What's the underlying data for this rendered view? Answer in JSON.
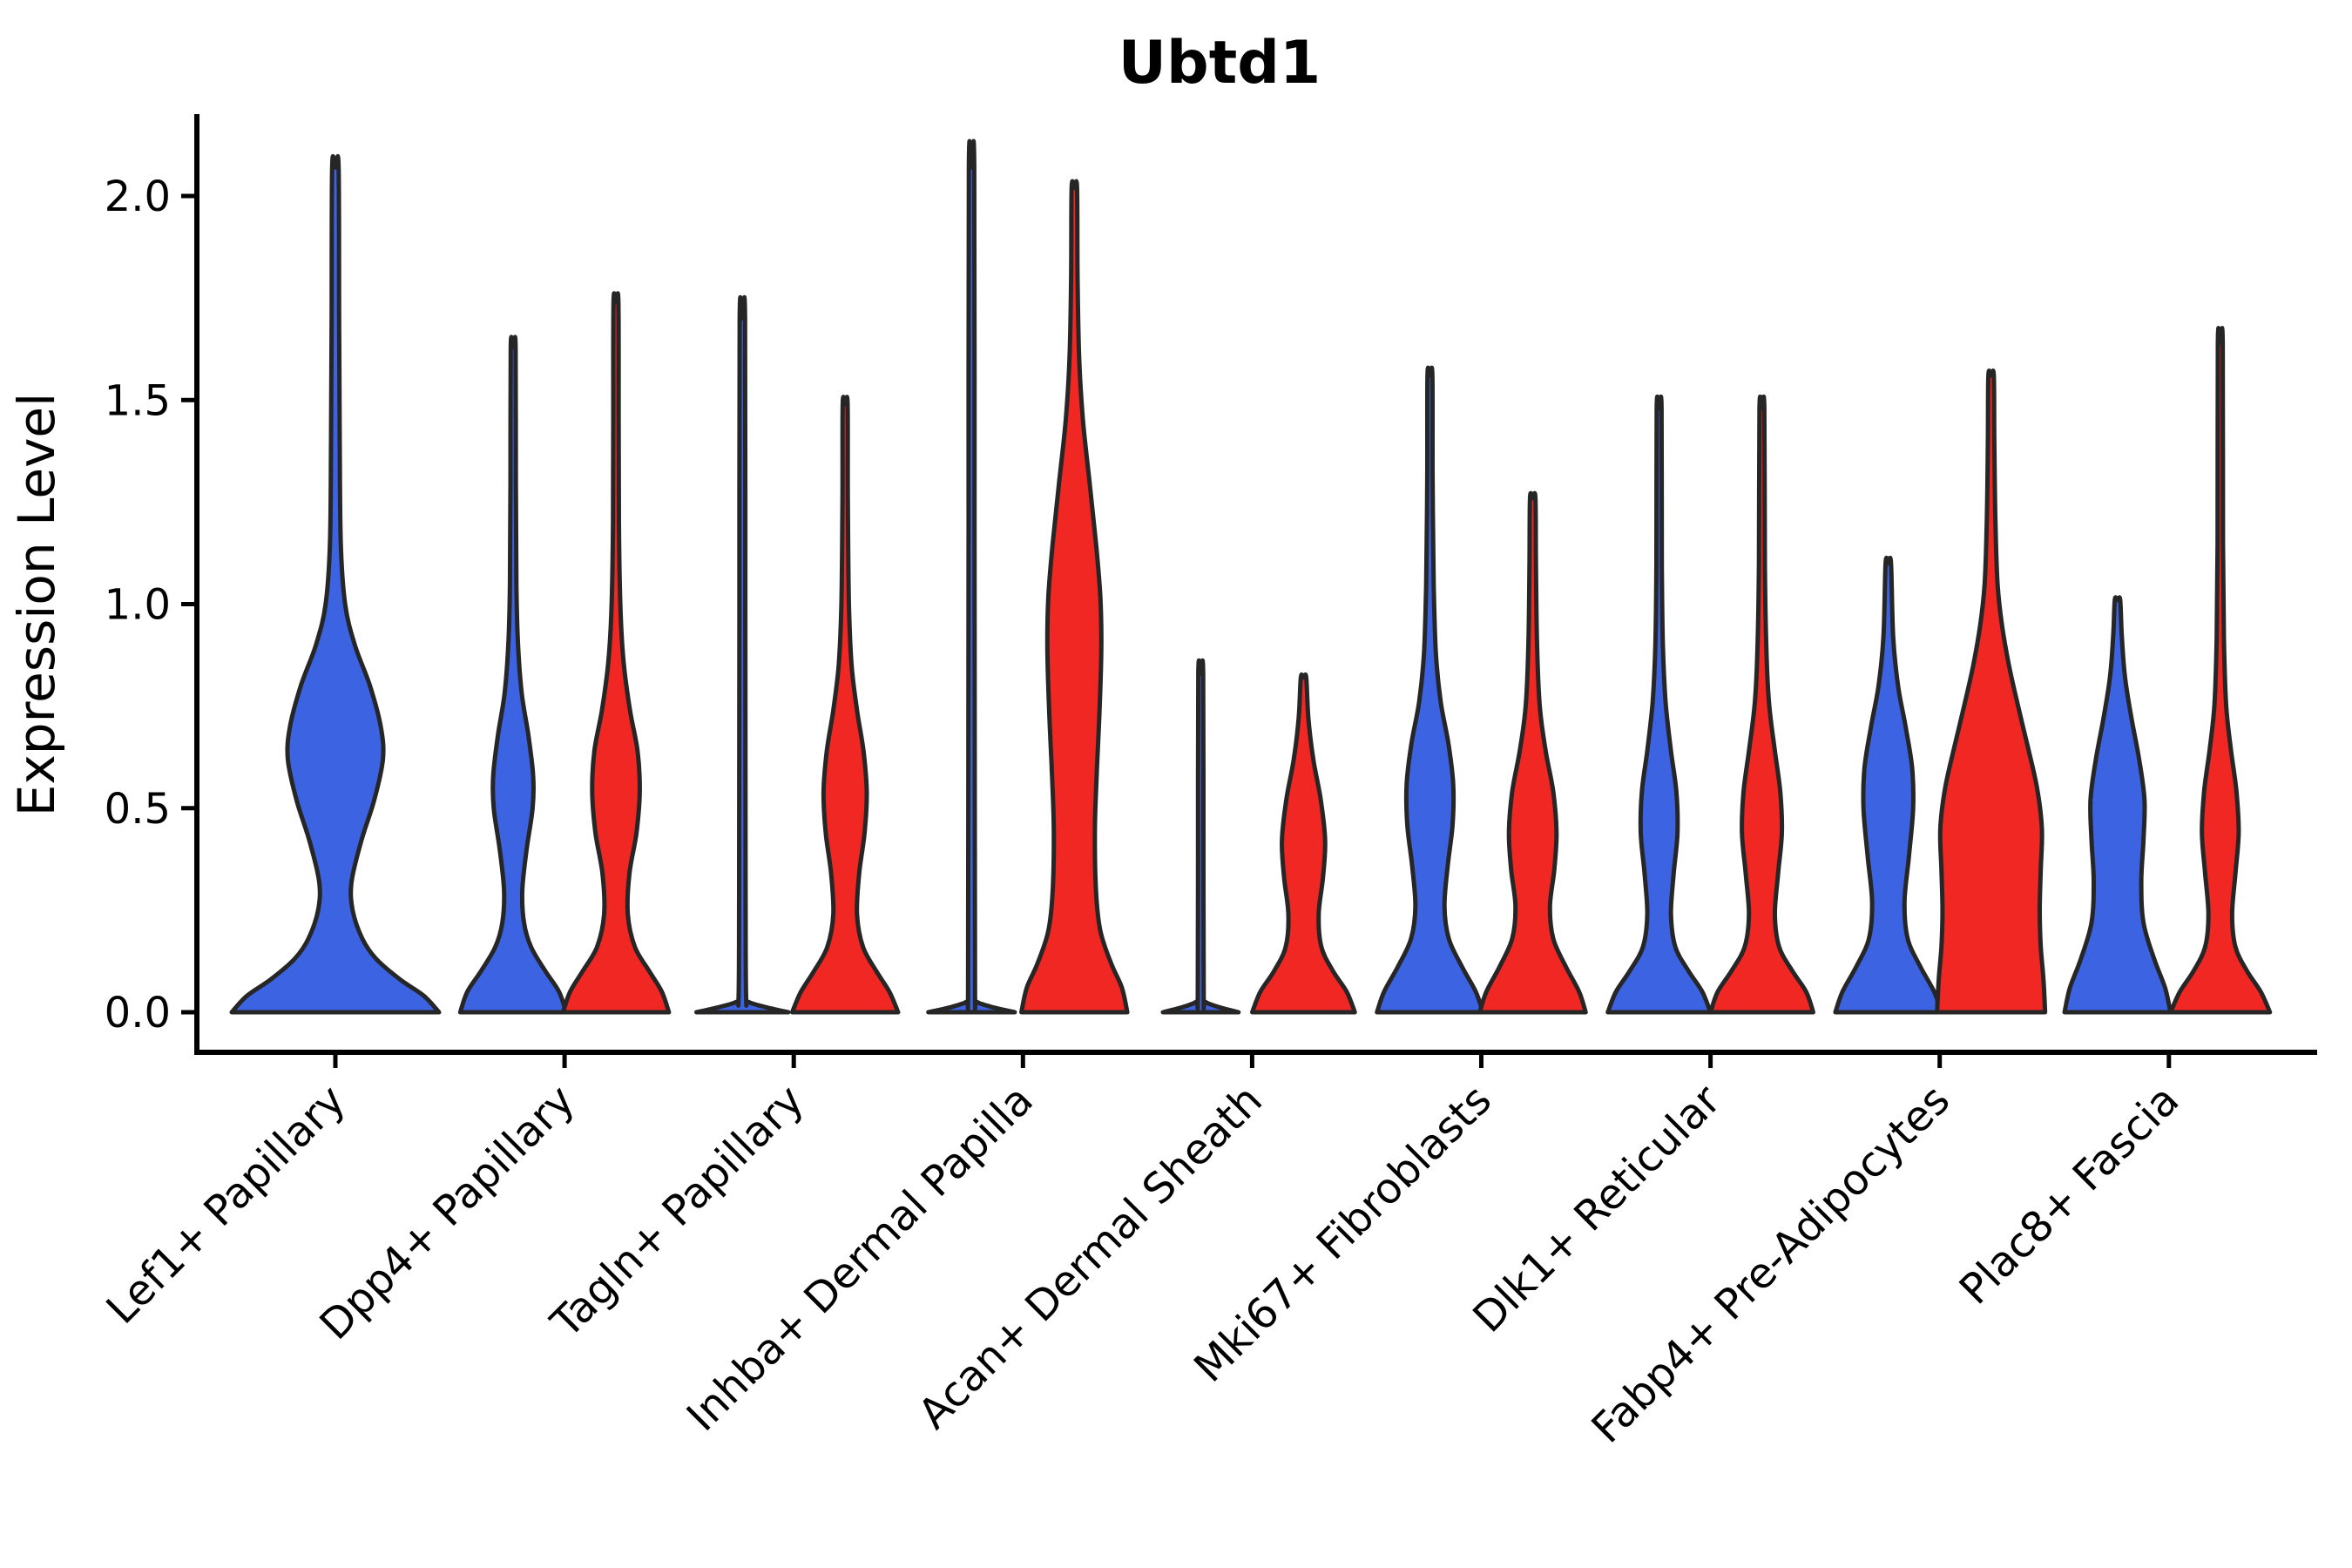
{
  "title": "Ubtd1",
  "axes": {
    "ylabel": "Expression Level",
    "ytick_labels": [
      "0.0",
      "0.5",
      "1.0",
      "1.5",
      "2.0"
    ],
    "ytick_values": [
      0,
      0.5,
      1.0,
      1.5,
      2.0
    ]
  },
  "colors": {
    "blue": "#3C63E2",
    "red": "#F12723",
    "outline": "#262626",
    "axis": "#000000"
  },
  "chart_data": {
    "type": "violin",
    "title": "Ubtd1",
    "ylabel": "Expression Level",
    "ylim": [
      -0.06,
      2.2
    ],
    "grid": false,
    "legend": "none",
    "categories": [
      "Lef1+ Papillary",
      "Dpp4+ Papillary",
      "Tagln+ Papillary",
      "Inhba+ Dermal Papilla",
      "Acan+ Dermal Sheath",
      "Mki67+ Fibroblasts",
      "Dlk1+ Reticular",
      "Fabp4+ Pre-Adipocytes",
      "Plac8+ Fascia"
    ],
    "series": [
      {
        "name": "blue",
        "color_key": "blue"
      },
      {
        "name": "red",
        "color_key": "red"
      }
    ],
    "violins": [
      {
        "cat": 0,
        "color": "blue",
        "offset": 0,
        "width": 2,
        "max": 2.07,
        "profile": [
          [
            0,
            0.96
          ],
          [
            0.04,
            0.82
          ],
          [
            0.08,
            0.6
          ],
          [
            0.13,
            0.38
          ],
          [
            0.18,
            0.25
          ],
          [
            0.25,
            0.16
          ],
          [
            0.32,
            0.15
          ],
          [
            0.42,
            0.24
          ],
          [
            0.52,
            0.36
          ],
          [
            0.62,
            0.44
          ],
          [
            0.7,
            0.42
          ],
          [
            0.8,
            0.32
          ],
          [
            0.9,
            0.18
          ],
          [
            1.0,
            0.09
          ],
          [
            1.15,
            0.05
          ],
          [
            1.4,
            0.04
          ],
          [
            1.7,
            0.035
          ],
          [
            2.07,
            0.03
          ]
        ]
      },
      {
        "cat": 1,
        "color": "blue",
        "offset": -1,
        "width": 1,
        "max": 1.63,
        "profile": [
          [
            0,
            0.98
          ],
          [
            0.05,
            0.85
          ],
          [
            0.1,
            0.6
          ],
          [
            0.16,
            0.33
          ],
          [
            0.22,
            0.2
          ],
          [
            0.3,
            0.17
          ],
          [
            0.4,
            0.25
          ],
          [
            0.5,
            0.36
          ],
          [
            0.58,
            0.37
          ],
          [
            0.68,
            0.28
          ],
          [
            0.78,
            0.16
          ],
          [
            0.9,
            0.09
          ],
          [
            1.05,
            0.06
          ],
          [
            1.3,
            0.05
          ],
          [
            1.63,
            0.045
          ]
        ]
      },
      {
        "cat": 1,
        "color": "red",
        "offset": 1,
        "width": 1,
        "max": 1.74,
        "profile": [
          [
            0,
            0.98
          ],
          [
            0.05,
            0.85
          ],
          [
            0.1,
            0.62
          ],
          [
            0.16,
            0.35
          ],
          [
            0.24,
            0.22
          ],
          [
            0.34,
            0.25
          ],
          [
            0.44,
            0.38
          ],
          [
            0.54,
            0.44
          ],
          [
            0.64,
            0.4
          ],
          [
            0.74,
            0.26
          ],
          [
            0.86,
            0.14
          ],
          [
            1.0,
            0.08
          ],
          [
            1.2,
            0.055
          ],
          [
            1.45,
            0.05
          ],
          [
            1.74,
            0.045
          ]
        ]
      },
      {
        "cat": 2,
        "color": "blue",
        "offset": -1,
        "width": 1,
        "max": 1.7,
        "profile": [
          [
            0,
            0.85
          ],
          [
            0.012,
            0.45
          ],
          [
            0.025,
            0.12
          ],
          [
            0.04,
            0.07
          ],
          [
            0.3,
            0.06
          ],
          [
            1.0,
            0.055
          ],
          [
            1.7,
            0.05
          ]
        ]
      },
      {
        "cat": 2,
        "color": "red",
        "offset": 1,
        "width": 1,
        "max": 1.49,
        "profile": [
          [
            0,
            0.98
          ],
          [
            0.05,
            0.82
          ],
          [
            0.1,
            0.58
          ],
          [
            0.16,
            0.33
          ],
          [
            0.24,
            0.22
          ],
          [
            0.34,
            0.26
          ],
          [
            0.44,
            0.36
          ],
          [
            0.54,
            0.4
          ],
          [
            0.64,
            0.34
          ],
          [
            0.74,
            0.22
          ],
          [
            0.85,
            0.12
          ],
          [
            1.0,
            0.07
          ],
          [
            1.25,
            0.05
          ],
          [
            1.49,
            0.045
          ]
        ]
      },
      {
        "cat": 3,
        "color": "blue",
        "offset": -1,
        "width": 1,
        "max": 2.07,
        "profile": [
          [
            0,
            0.8
          ],
          [
            0.012,
            0.4
          ],
          [
            0.025,
            0.1
          ],
          [
            0.04,
            0.065
          ],
          [
            0.5,
            0.06
          ],
          [
            1.2,
            0.055
          ],
          [
            2.07,
            0.05
          ]
        ]
      },
      {
        "cat": 3,
        "color": "red",
        "offset": 1,
        "width": 1,
        "max": 2.02,
        "profile": [
          [
            0,
            0.98
          ],
          [
            0.06,
            0.88
          ],
          [
            0.12,
            0.68
          ],
          [
            0.2,
            0.48
          ],
          [
            0.3,
            0.4
          ],
          [
            0.45,
            0.38
          ],
          [
            0.6,
            0.42
          ],
          [
            0.75,
            0.47
          ],
          [
            0.9,
            0.5
          ],
          [
            1.02,
            0.48
          ],
          [
            1.15,
            0.4
          ],
          [
            1.3,
            0.28
          ],
          [
            1.45,
            0.16
          ],
          [
            1.6,
            0.09
          ],
          [
            1.8,
            0.06
          ],
          [
            2.02,
            0.05
          ]
        ]
      },
      {
        "cat": 4,
        "color": "blue",
        "offset": -1,
        "width": 1,
        "max": 0.83,
        "profile": [
          [
            0,
            0.7
          ],
          [
            0.012,
            0.35
          ],
          [
            0.025,
            0.09
          ],
          [
            0.04,
            0.055
          ],
          [
            0.4,
            0.05
          ],
          [
            0.83,
            0.045
          ]
        ]
      },
      {
        "cat": 4,
        "color": "red",
        "offset": 1,
        "width": 1,
        "max": 0.82,
        "profile": [
          [
            0,
            0.95
          ],
          [
            0.05,
            0.8
          ],
          [
            0.1,
            0.55
          ],
          [
            0.16,
            0.33
          ],
          [
            0.24,
            0.28
          ],
          [
            0.33,
            0.36
          ],
          [
            0.42,
            0.4
          ],
          [
            0.52,
            0.32
          ],
          [
            0.62,
            0.18
          ],
          [
            0.72,
            0.09
          ],
          [
            0.82,
            0.05
          ]
        ]
      },
      {
        "cat": 5,
        "color": "blue",
        "offset": -1,
        "width": 1,
        "max": 1.56,
        "profile": [
          [
            0,
            0.98
          ],
          [
            0.05,
            0.85
          ],
          [
            0.11,
            0.6
          ],
          [
            0.18,
            0.35
          ],
          [
            0.26,
            0.27
          ],
          [
            0.36,
            0.33
          ],
          [
            0.46,
            0.42
          ],
          [
            0.56,
            0.43
          ],
          [
            0.66,
            0.34
          ],
          [
            0.76,
            0.2
          ],
          [
            0.88,
            0.11
          ],
          [
            1.05,
            0.07
          ],
          [
            1.3,
            0.05
          ],
          [
            1.56,
            0.045
          ]
        ]
      },
      {
        "cat": 5,
        "color": "red",
        "offset": 1,
        "width": 1,
        "max": 1.26,
        "profile": [
          [
            0,
            0.98
          ],
          [
            0.05,
            0.86
          ],
          [
            0.11,
            0.62
          ],
          [
            0.18,
            0.38
          ],
          [
            0.26,
            0.32
          ],
          [
            0.35,
            0.4
          ],
          [
            0.44,
            0.44
          ],
          [
            0.54,
            0.38
          ],
          [
            0.64,
            0.24
          ],
          [
            0.75,
            0.13
          ],
          [
            0.9,
            0.08
          ],
          [
            1.1,
            0.06
          ],
          [
            1.26,
            0.05
          ]
        ]
      },
      {
        "cat": 6,
        "color": "blue",
        "offset": -1,
        "width": 1,
        "max": 1.48,
        "profile": [
          [
            0,
            0.95
          ],
          [
            0.05,
            0.8
          ],
          [
            0.1,
            0.55
          ],
          [
            0.16,
            0.3
          ],
          [
            0.24,
            0.22
          ],
          [
            0.34,
            0.27
          ],
          [
            0.44,
            0.34
          ],
          [
            0.54,
            0.32
          ],
          [
            0.64,
            0.22
          ],
          [
            0.76,
            0.12
          ],
          [
            0.9,
            0.07
          ],
          [
            1.1,
            0.05
          ],
          [
            1.48,
            0.045
          ]
        ]
      },
      {
        "cat": 6,
        "color": "red",
        "offset": 1,
        "width": 1,
        "max": 1.48,
        "profile": [
          [
            0,
            0.95
          ],
          [
            0.05,
            0.82
          ],
          [
            0.1,
            0.57
          ],
          [
            0.16,
            0.32
          ],
          [
            0.24,
            0.24
          ],
          [
            0.34,
            0.3
          ],
          [
            0.44,
            0.37
          ],
          [
            0.54,
            0.34
          ],
          [
            0.64,
            0.24
          ],
          [
            0.76,
            0.13
          ],
          [
            0.9,
            0.08
          ],
          [
            1.1,
            0.055
          ],
          [
            1.48,
            0.045
          ]
        ]
      },
      {
        "cat": 7,
        "color": "blue",
        "offset": -1,
        "width": 1,
        "max": 1.1,
        "profile": [
          [
            0,
            0.98
          ],
          [
            0.05,
            0.85
          ],
          [
            0.11,
            0.6
          ],
          [
            0.18,
            0.36
          ],
          [
            0.27,
            0.3
          ],
          [
            0.38,
            0.38
          ],
          [
            0.5,
            0.46
          ],
          [
            0.6,
            0.44
          ],
          [
            0.7,
            0.32
          ],
          [
            0.8,
            0.18
          ],
          [
            0.92,
            0.09
          ],
          [
            1.1,
            0.05
          ]
        ]
      },
      {
        "cat": 7,
        "color": "red",
        "offset": 1,
        "width": 1,
        "max": 1.56,
        "profile": [
          [
            0,
            1.0
          ],
          [
            0.08,
            0.97
          ],
          [
            0.16,
            0.92
          ],
          [
            0.25,
            0.9
          ],
          [
            0.35,
            0.92
          ],
          [
            0.45,
            0.94
          ],
          [
            0.55,
            0.85
          ],
          [
            0.65,
            0.68
          ],
          [
            0.75,
            0.5
          ],
          [
            0.85,
            0.33
          ],
          [
            0.95,
            0.2
          ],
          [
            1.05,
            0.12
          ],
          [
            1.2,
            0.08
          ],
          [
            1.4,
            0.06
          ],
          [
            1.56,
            0.05
          ]
        ]
      },
      {
        "cat": 8,
        "color": "blue",
        "offset": -1,
        "width": 1,
        "max": 1.01,
        "profile": [
          [
            0,
            0.98
          ],
          [
            0.06,
            0.88
          ],
          [
            0.13,
            0.68
          ],
          [
            0.22,
            0.48
          ],
          [
            0.32,
            0.44
          ],
          [
            0.42,
            0.48
          ],
          [
            0.52,
            0.5
          ],
          [
            0.62,
            0.4
          ],
          [
            0.72,
            0.26
          ],
          [
            0.82,
            0.14
          ],
          [
            0.92,
            0.08
          ],
          [
            1.01,
            0.05
          ]
        ]
      },
      {
        "cat": 8,
        "color": "red",
        "offset": 1,
        "width": 1,
        "max": 1.64,
        "profile": [
          [
            0,
            0.92
          ],
          [
            0.05,
            0.75
          ],
          [
            0.1,
            0.5
          ],
          [
            0.16,
            0.28
          ],
          [
            0.24,
            0.22
          ],
          [
            0.34,
            0.28
          ],
          [
            0.44,
            0.34
          ],
          [
            0.54,
            0.3
          ],
          [
            0.64,
            0.2
          ],
          [
            0.75,
            0.11
          ],
          [
            0.9,
            0.07
          ],
          [
            1.15,
            0.05
          ],
          [
            1.64,
            0.045
          ]
        ]
      }
    ]
  }
}
